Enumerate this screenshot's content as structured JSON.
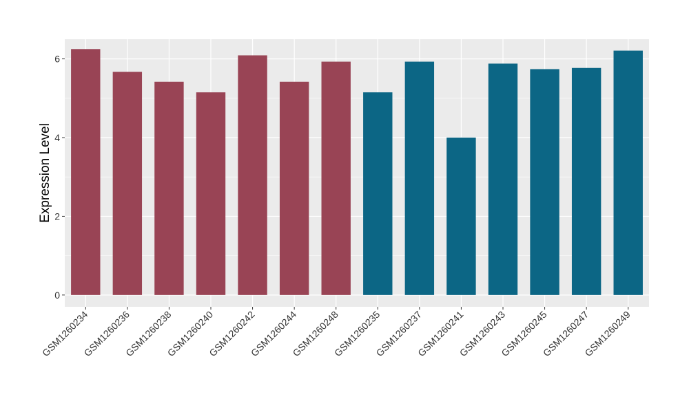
{
  "chart_data": {
    "type": "bar",
    "title": "",
    "xlabel": "",
    "ylabel": "Expression Level",
    "ylim": [
      -0.3,
      6.5
    ],
    "yticks": [
      0,
      2,
      4,
      6
    ],
    "grid": true,
    "legend": "none",
    "categories": [
      "GSM1260234",
      "GSM1260236",
      "GSM1260238",
      "GSM1260240",
      "GSM1260242",
      "GSM1260244",
      "GSM1260248",
      "GSM1260235",
      "GSM1260237",
      "GSM1260241",
      "GSM1260243",
      "GSM1260245",
      "GSM1260247",
      "GSM1260249"
    ],
    "values": [
      6.25,
      5.67,
      5.42,
      5.15,
      6.09,
      5.42,
      5.93,
      5.15,
      5.93,
      4.0,
      5.88,
      5.74,
      5.77,
      6.21
    ],
    "group_colors": [
      "#994455",
      "#994455",
      "#994455",
      "#994455",
      "#994455",
      "#994455",
      "#994455",
      "#0c6685",
      "#0c6685",
      "#0c6685",
      "#0c6685",
      "#0c6685",
      "#0c6685",
      "#0c6685"
    ]
  },
  "style": {
    "panel_background": "#ebebeb",
    "grid_color": "#ffffff"
  }
}
